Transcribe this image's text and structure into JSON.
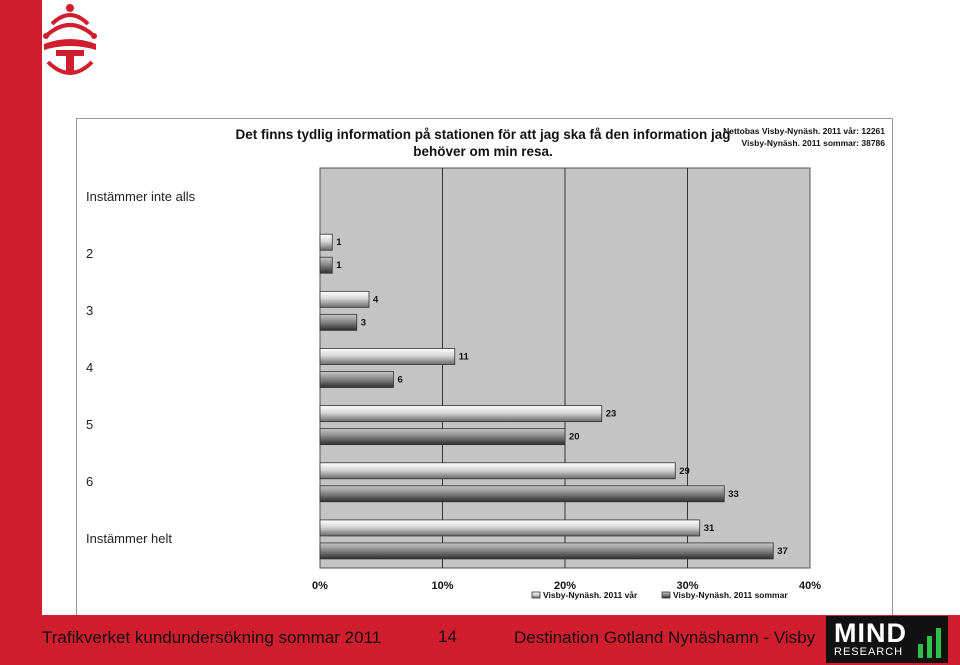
{
  "slide": {
    "footer_left": "Trafikverket kundundersökning sommar 2011",
    "page_number": "14",
    "footer_right": "Destination Gotland Nynäshamn - Visby",
    "brand_primary": "#d01e2f",
    "mind_logo": {
      "word": "MIND",
      "sub": "RESEARCH"
    }
  },
  "chart_data": {
    "type": "bar",
    "orientation": "horizontal",
    "title": "Det finns tydlig information på stationen för att jag ska få den information jag behöver om min resa.",
    "basis": [
      "Nettobas  Visby-Nynäsh. 2011 vår: 12261",
      "Visby-Nynäsh. 2011 sommar: 38786"
    ],
    "categories": [
      "Instämmer inte alls",
      "2",
      "3",
      "4",
      "5",
      "6",
      "Instämmer helt"
    ],
    "series": [
      {
        "name": "Visby-Nynäsh. 2011 vår",
        "values": [
          null,
          1,
          4,
          11,
          23,
          29,
          31
        ]
      },
      {
        "name": "Visby-Nynäsh. 2011 sommar",
        "values": [
          null,
          1,
          3,
          6,
          20,
          33,
          37
        ]
      }
    ],
    "xlim": [
      0,
      40
    ],
    "x_ticks": [
      "0%",
      "10%",
      "20%",
      "30%",
      "40%"
    ],
    "grid": true,
    "legend_position": "bottom"
  }
}
